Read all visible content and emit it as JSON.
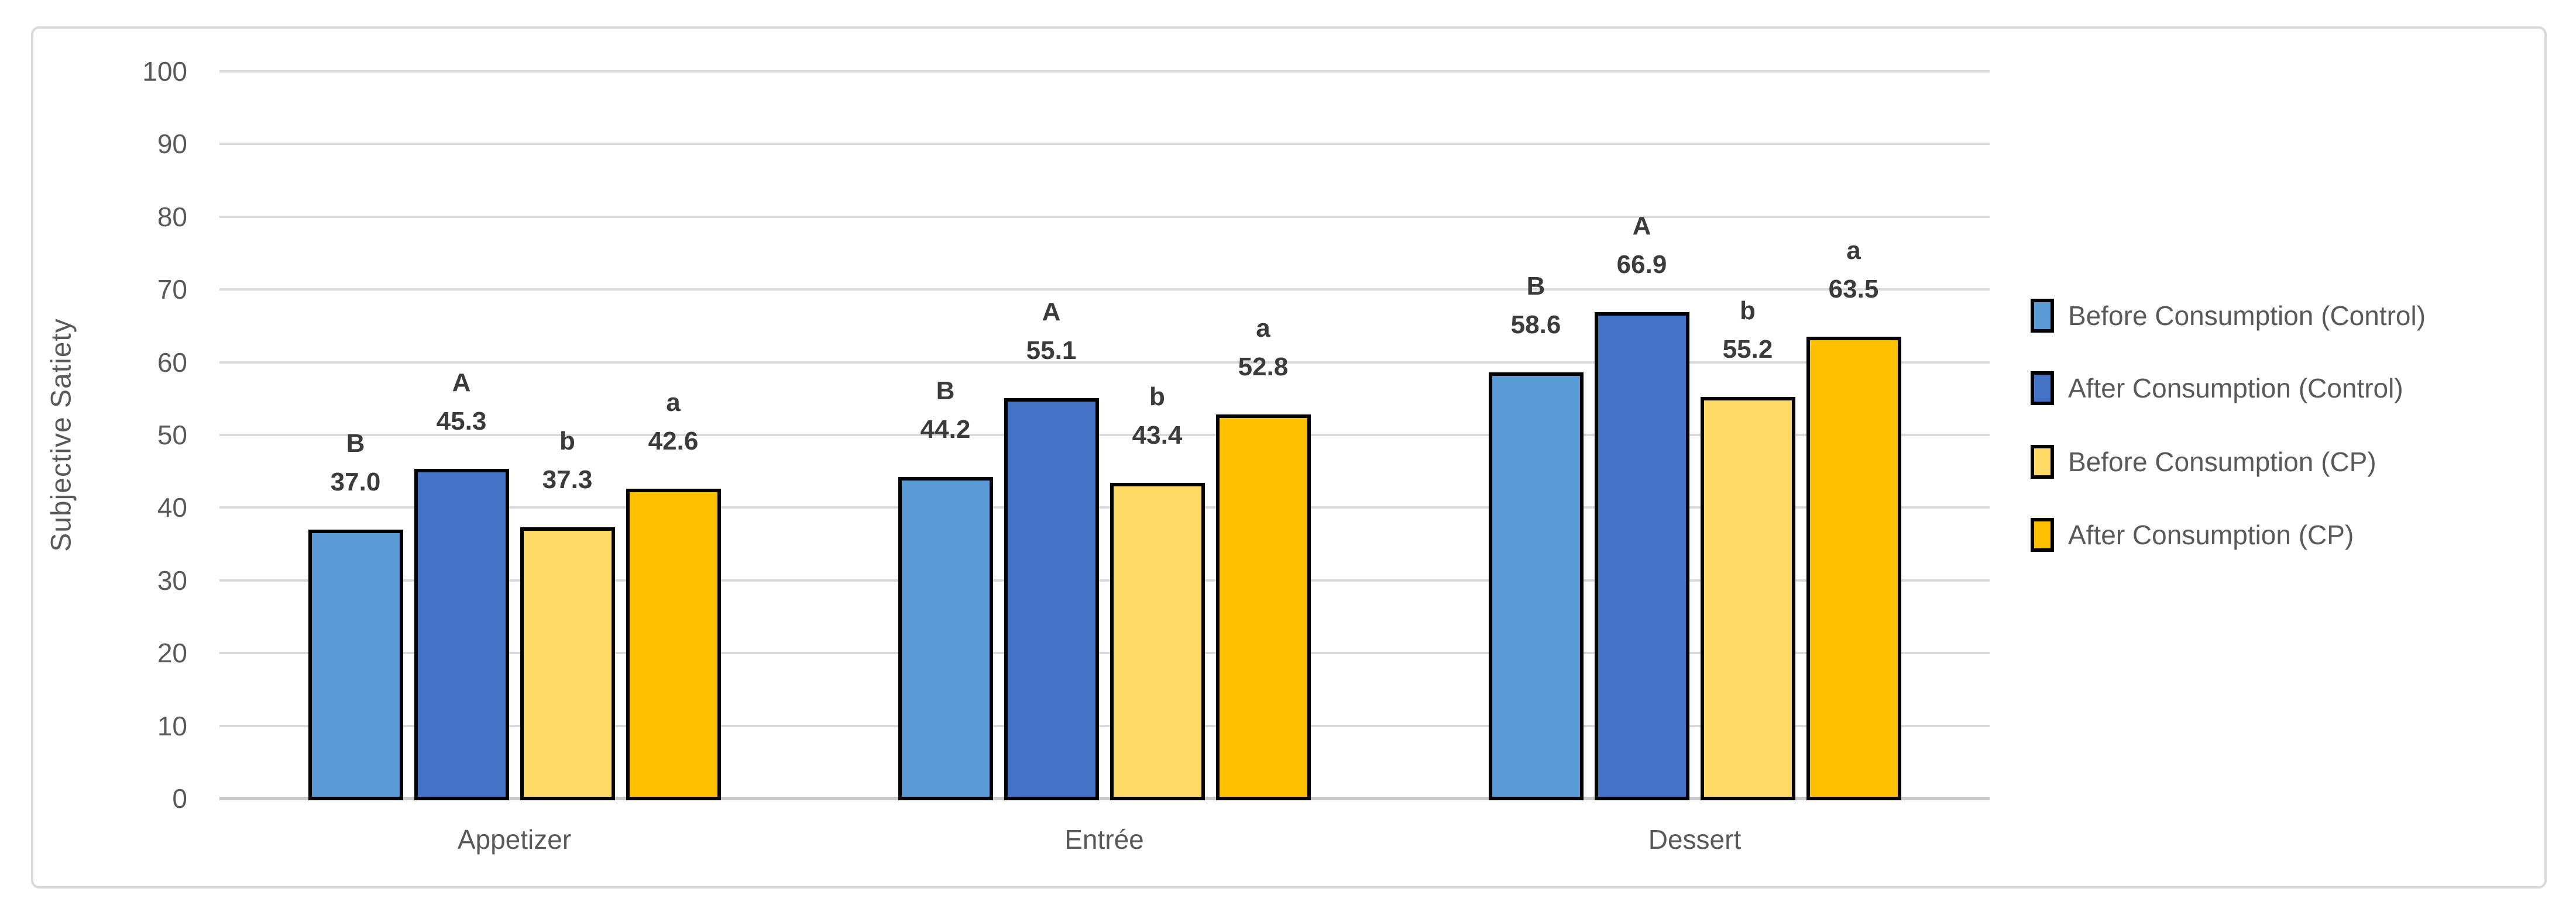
{
  "chart_data": {
    "type": "bar",
    "title": "",
    "xlabel": "",
    "ylabel": "Subjective Satiety",
    "ylim": [
      0,
      100
    ],
    "yticks": [
      0,
      10,
      20,
      30,
      40,
      50,
      60,
      70,
      80,
      90,
      100
    ],
    "grid": true,
    "legend_position": "right",
    "categories": [
      "Appetizer",
      "Entrée",
      "Dessert"
    ],
    "series": [
      {
        "name": "Before Consumption (Control)",
        "color": "#5B9BD5",
        "values": [
          37.0,
          44.2,
          58.6
        ],
        "value_labels": [
          "37.0",
          "44.2",
          "58.6"
        ],
        "letters": [
          "B",
          "B",
          "B"
        ]
      },
      {
        "name": "After Consumption (Control)",
        "color": "#4472C4",
        "values": [
          45.3,
          55.1,
          66.9
        ],
        "value_labels": [
          "45.3",
          "55.1",
          "66.9"
        ],
        "letters": [
          "A",
          "A",
          "A"
        ]
      },
      {
        "name": "Before Consumption (CP)",
        "color": "#FFD966",
        "values": [
          37.3,
          43.4,
          55.2
        ],
        "value_labels": [
          "37.3",
          "43.4",
          "55.2"
        ],
        "letters": [
          "b",
          "b",
          "b"
        ]
      },
      {
        "name": "After Consumption (CP)",
        "color": "#FFC000",
        "values": [
          42.6,
          52.8,
          63.5
        ],
        "value_labels": [
          "42.6",
          "52.8",
          "63.5"
        ],
        "letters": [
          "a",
          "a",
          "a"
        ]
      }
    ],
    "colors": {
      "gridline": "#D9D9D9",
      "axis_line": "#C9C9C9",
      "axis_text": "#595959",
      "data_label_text": "#3b3b3b",
      "bar_border": "#000000",
      "frame_border": "#D9D9D9",
      "background": "#ffffff"
    }
  }
}
